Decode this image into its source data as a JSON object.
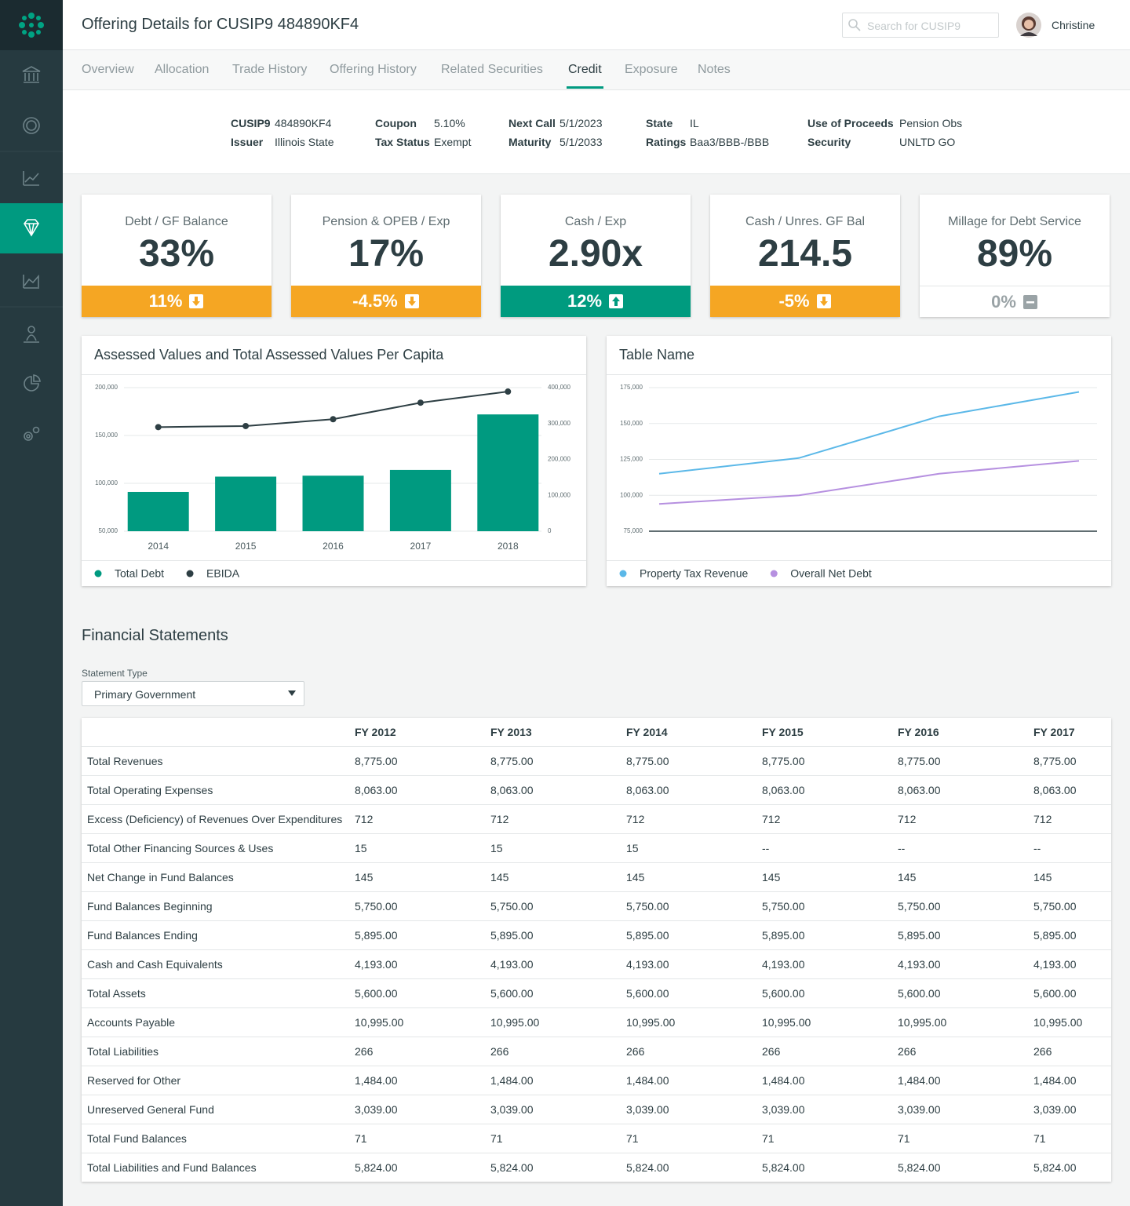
{
  "header": {
    "title": "Offering Details for CUSIP9 484890KF4",
    "search_placeholder": "Search for CUSIP9",
    "user": "Christine"
  },
  "tabs": [
    "Overview",
    "Allocation",
    "Trade History",
    "Offering History",
    "Related Securities",
    "Credit",
    "Exposure",
    "Notes"
  ],
  "active_tab": 5,
  "details": [
    [
      {
        "label": "CUSIP9",
        "value": "484890KF4"
      },
      {
        "label": "Issuer",
        "value": "Illinois State"
      }
    ],
    [
      {
        "label": "Coupon",
        "value": "5.10%"
      },
      {
        "label": "Tax Status",
        "value": "Exempt"
      }
    ],
    [
      {
        "label": "Next Call",
        "value": "5/1/2023"
      },
      {
        "label": "Maturity",
        "value": "5/1/2033"
      }
    ],
    [
      {
        "label": "State",
        "value": "IL"
      },
      {
        "label": "Ratings",
        "value": "Baa3/BBB-/BBB"
      }
    ],
    [
      {
        "label": "Use of Proceeds",
        "value": "Pension Obs"
      },
      {
        "label": "Security",
        "value": "UNLTD GO"
      }
    ]
  ],
  "kpis": [
    {
      "title": "Debt / GF Balance",
      "value": "33%",
      "change": "11%",
      "trend": "down"
    },
    {
      "title": "Pension & OPEB / Exp",
      "value": "17%",
      "change": "-4.5%",
      "trend": "down"
    },
    {
      "title": "Cash / Exp",
      "value": "2.90x",
      "change": "12%",
      "trend": "up"
    },
    {
      "title": "Cash / Unres. GF Bal",
      "value": "214.5",
      "change": "-5%",
      "trend": "down"
    },
    {
      "title": "Millage for Debt Service",
      "value": "89%",
      "change": "0%",
      "trend": "flat"
    }
  ],
  "chart_data": [
    {
      "type": "combo",
      "title": "Assessed Values and Total Assessed Values Per Capita",
      "categories": [
        "2014",
        "2015",
        "2016",
        "2017",
        "2018"
      ],
      "series": [
        {
          "name": "Total Debt",
          "type": "bar",
          "color": "#009a80",
          "values": [
            91000,
            107000,
            108000,
            114000,
            172000
          ]
        },
        {
          "name": "EBIDA",
          "type": "line",
          "axis": "y2",
          "marker": true,
          "color": "#2e3f44",
          "values": [
            290000,
            293000,
            312000,
            358000,
            389000
          ]
        }
      ],
      "ylim": [
        50000,
        200000
      ],
      "yticks": [
        {
          "value": 50000,
          "label": "50,000"
        },
        {
          "value": 100000,
          "label": "100,000"
        },
        {
          "value": 150000,
          "label": "150,000"
        },
        {
          "value": 200000,
          "label": "200,000"
        }
      ],
      "y2lim": [
        0,
        400000
      ],
      "y2ticks": [
        0,
        {
          "value": 100000,
          "label": "100,000"
        },
        {
          "value": 200000,
          "label": "200,000"
        },
        {
          "value": 300000,
          "label": "300,000"
        },
        {
          "value": 400000,
          "label": "400,000"
        }
      ],
      "grid": true,
      "legend": "bottom"
    },
    {
      "type": "line",
      "title": "Table Name",
      "categories": [
        null,
        null,
        null,
        null
      ],
      "series": [
        {
          "name": "Property Tax Revenue",
          "type": "line",
          "color": "#5bb8e8",
          "values": [
            115000,
            126000,
            155000,
            172000
          ]
        },
        {
          "name": "Overall Net Debt",
          "type": "line",
          "color": "#b690e0",
          "values": [
            94000,
            100000,
            115000,
            124000
          ]
        }
      ],
      "ylim": [
        75000,
        175000
      ],
      "yticks": [
        {
          "value": 75000,
          "label": "75,000"
        },
        {
          "value": 100000,
          "label": "100,000"
        },
        {
          "value": 125000,
          "label": "125,000"
        },
        {
          "value": 150000,
          "label": "150,000"
        },
        {
          "value": 175000,
          "label": "175,000"
        }
      ],
      "grid": true,
      "legend": "bottom"
    }
  ],
  "financial_statements": {
    "title": "Financial Statements",
    "filter_label": "Statement Type",
    "filter_value": "Primary Government",
    "columns": [
      "FY 2012",
      "FY 2013",
      "FY 2014",
      "FY 2015",
      "FY 2016",
      "FY 2017"
    ],
    "rows": [
      {
        "label": "Total Revenues",
        "values": [
          "8,775.00",
          "8,775.00",
          "8,775.00",
          "8,775.00",
          "8,775.00",
          "8,775.00"
        ]
      },
      {
        "label": "Total Operating Expenses",
        "values": [
          "8,063.00",
          "8,063.00",
          "8,063.00",
          "8,063.00",
          "8,063.00",
          "8,063.00"
        ]
      },
      {
        "label": "Excess (Deficiency) of Revenues Over Expenditures",
        "values": [
          "712",
          "712",
          "712",
          "712",
          "712",
          "712"
        ]
      },
      {
        "label": "Total Other Financing Sources & Uses",
        "values": [
          "15",
          "15",
          "15",
          "--",
          "--",
          "--"
        ]
      },
      {
        "label": "Net Change in Fund Balances",
        "values": [
          "145",
          "145",
          "145",
          "145",
          "145",
          "145"
        ]
      },
      {
        "label": "Fund Balances Beginning",
        "values": [
          "5,750.00",
          "5,750.00",
          "5,750.00",
          "5,750.00",
          "5,750.00",
          "5,750.00"
        ]
      },
      {
        "label": "Fund Balances Ending",
        "values": [
          "5,895.00",
          "5,895.00",
          "5,895.00",
          "5,895.00",
          "5,895.00",
          "5,895.00"
        ]
      },
      {
        "label": "Cash and Cash Equivalents",
        "values": [
          "4,193.00",
          "4,193.00",
          "4,193.00",
          "4,193.00",
          "4,193.00",
          "4,193.00"
        ]
      },
      {
        "label": "Total Assets",
        "values": [
          "5,600.00",
          "5,600.00",
          "5,600.00",
          "5,600.00",
          "5,600.00",
          "5,600.00"
        ]
      },
      {
        "label": "Accounts Payable",
        "values": [
          "10,995.00",
          "10,995.00",
          "10,995.00",
          "10,995.00",
          "10,995.00",
          "10,995.00"
        ]
      },
      {
        "label": "Total Liabilities",
        "values": [
          "266",
          "266",
          "266",
          "266",
          "266",
          "266"
        ]
      },
      {
        "label": "Reserved for Other",
        "values": [
          "1,484.00",
          "1,484.00",
          "1,484.00",
          "1,484.00",
          "1,484.00",
          "1,484.00"
        ]
      },
      {
        "label": "Unreserved General Fund",
        "values": [
          "3,039.00",
          "3,039.00",
          "3,039.00",
          "3,039.00",
          "3,039.00",
          "3,039.00"
        ]
      },
      {
        "label": "Total Fund Balances",
        "values": [
          "71",
          "71",
          "71",
          "71",
          "71",
          "71"
        ]
      },
      {
        "label": "Total Liabilities and Fund Balances",
        "values": [
          "5,824.00",
          "5,824.00",
          "5,824.00",
          "5,824.00",
          "5,824.00",
          "5,824.00"
        ]
      }
    ]
  }
}
